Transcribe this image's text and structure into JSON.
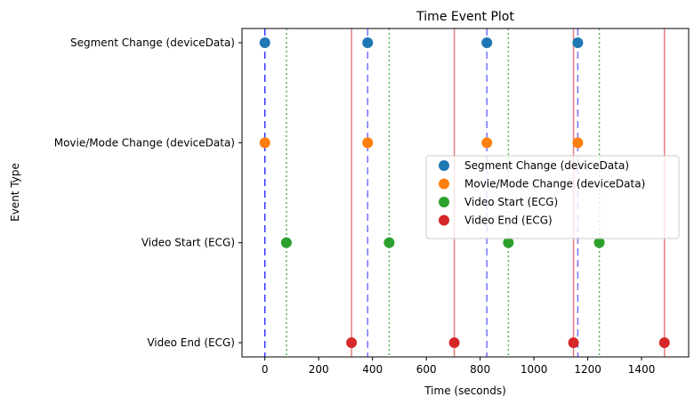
{
  "chart_data": {
    "type": "scatter",
    "title": "Time Event Plot",
    "xlabel": "Time (seconds)",
    "ylabel": "Event Type",
    "xlim": [
      -85,
      1575
    ],
    "x_ticks": [
      0,
      200,
      400,
      600,
      800,
      1000,
      1200,
      1400
    ],
    "categories": [
      "Video End (ECG)",
      "Video Start (ECG)",
      "Movie/Mode Change (deviceData)",
      "Segment Change (deviceData)"
    ],
    "grid": false,
    "legend_position": "center-right",
    "series": [
      {
        "name": "Segment Change (deviceData)",
        "category": "Segment Change (deviceData)",
        "color": "#1f77b4",
        "x": [
          0,
          382,
          825,
          1163
        ]
      },
      {
        "name": "Movie/Mode Change (deviceData)",
        "category": "Movie/Mode Change (deviceData)",
        "color": "#ff7f0e",
        "x": [
          0,
          382,
          825,
          1163
        ]
      },
      {
        "name": "Video Start (ECG)",
        "category": "Video Start (ECG)",
        "color": "#2ca02c",
        "x": [
          80,
          462,
          905,
          1243
        ]
      },
      {
        "name": "Video End (ECG)",
        "category": "Video End (ECG)",
        "color": "#d62728",
        "x": [
          322,
          704,
          1147,
          1485
        ]
      }
    ],
    "reference_lines": [
      {
        "kind": "segment-change",
        "style": "dashed",
        "color": "#0000ff",
        "x": [
          0,
          382,
          825,
          1163
        ]
      },
      {
        "kind": "video-start",
        "style": "dotted",
        "color": "#2ca02c",
        "x": [
          80,
          462,
          905,
          1243
        ]
      },
      {
        "kind": "video-end",
        "style": "solid",
        "color": "#d62728",
        "x": [
          322,
          704,
          1147,
          1485
        ]
      }
    ]
  }
}
